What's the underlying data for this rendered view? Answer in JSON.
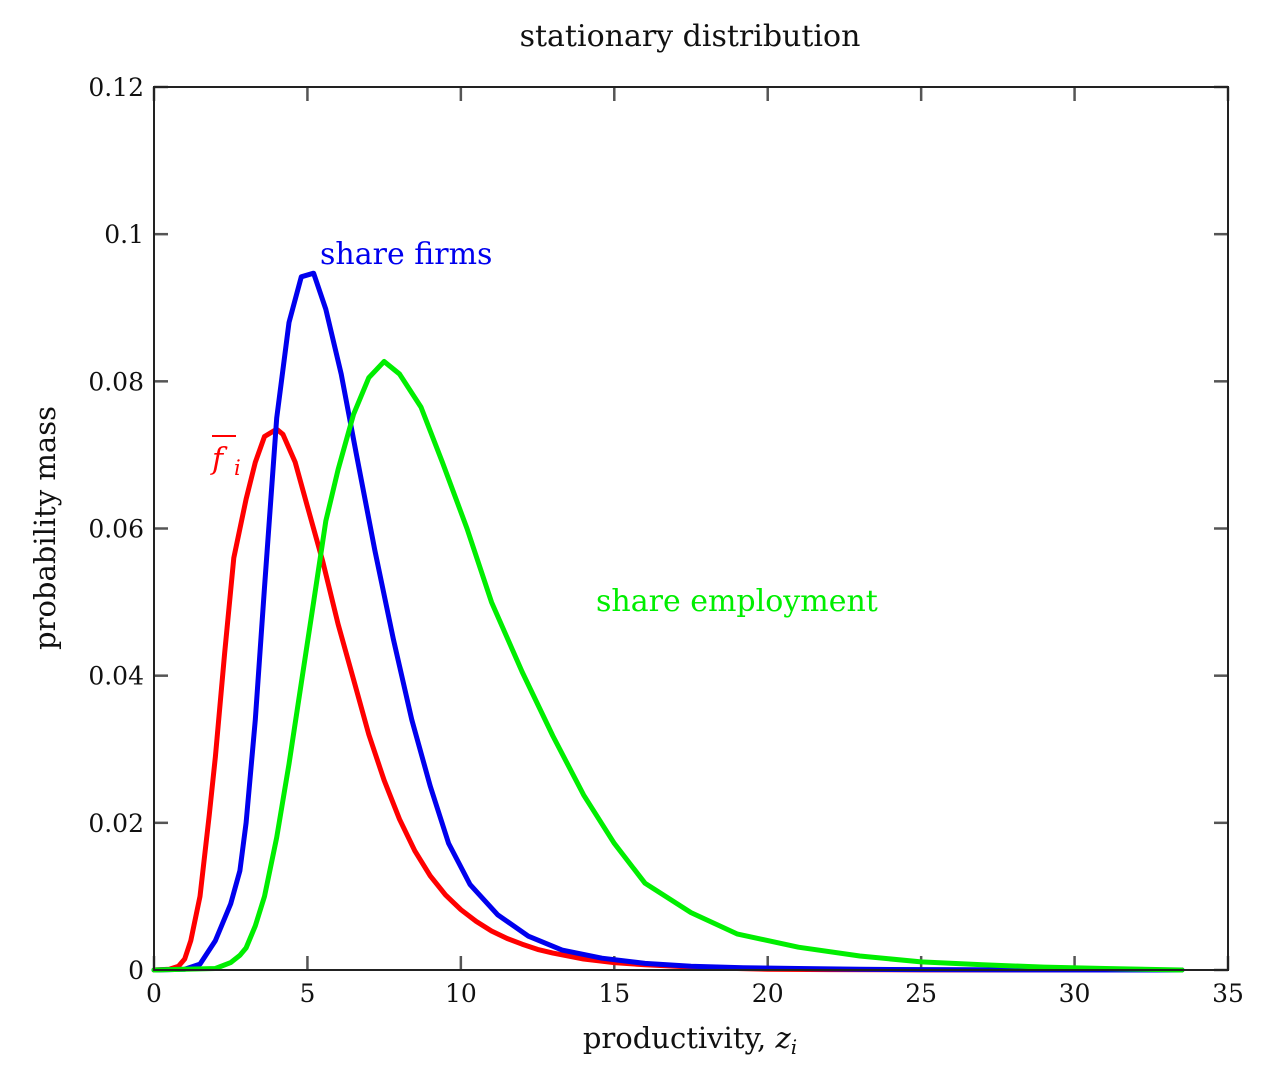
{
  "chart_data": {
    "type": "line",
    "title": "stationary distribution",
    "xlabel": "productivity, ",
    "xlabel_var": "z",
    "xlabel_sub": "i",
    "ylabel": "probability mass",
    "xlim": [
      0,
      35
    ],
    "ylim": [
      0,
      0.12
    ],
    "xticks": [
      0,
      5,
      10,
      15,
      20,
      25,
      30,
      35
    ],
    "xtick_labels": [
      "0",
      "5",
      "10",
      "15",
      "20",
      "25",
      "30",
      "35"
    ],
    "yticks": [
      0,
      0.02,
      0.04,
      0.06,
      0.08,
      0.1,
      0.12
    ],
    "ytick_labels": [
      "0",
      "0.02",
      "0.04",
      "0.06",
      "0.08",
      "0.1",
      "0.12"
    ],
    "grid": false,
    "legend": "none",
    "series": [
      {
        "name": "f",
        "label_sub": "i",
        "color": "#ff0000",
        "x": [
          0,
          0.5,
          0.8,
          1.0,
          1.2,
          1.5,
          1.8,
          2.0,
          2.3,
          2.6,
          3.0,
          3.3,
          3.6,
          4.0,
          4.2,
          4.6,
          5.0,
          5.5,
          6.0,
          6.5,
          7.0,
          7.5,
          8.0,
          8.5,
          9.0,
          9.5,
          10.0,
          10.5,
          11.0,
          11.5,
          12.0,
          12.5,
          13.0,
          13.5,
          14.0,
          15.0,
          16.0,
          17.0,
          18.0,
          19.0,
          20.0,
          22.0,
          25.0,
          30.0,
          33.5
        ],
        "y": [
          0,
          0.0001,
          0.0005,
          0.0015,
          0.004,
          0.01,
          0.021,
          0.029,
          0.043,
          0.056,
          0.064,
          0.069,
          0.0725,
          0.0735,
          0.0728,
          0.069,
          0.063,
          0.0555,
          0.047,
          0.0395,
          0.032,
          0.0258,
          0.0205,
          0.0162,
          0.0128,
          0.0102,
          0.0082,
          0.0066,
          0.0053,
          0.0043,
          0.0035,
          0.0028,
          0.0023,
          0.0019,
          0.0015,
          0.001,
          0.0007,
          0.0005,
          0.0003,
          0.0002,
          0.0001,
          5e-05,
          1e-05,
          0,
          0
        ]
      },
      {
        "name": "share firms",
        "color": "#0000ee",
        "x": [
          0,
          1.0,
          1.5,
          2.0,
          2.5,
          2.8,
          3.0,
          3.3,
          3.6,
          4.0,
          4.4,
          4.8,
          5.2,
          5.6,
          6.1,
          6.6,
          7.2,
          7.8,
          8.4,
          9.0,
          9.6,
          10.3,
          11.2,
          12.2,
          13.3,
          14.6,
          16.0,
          17.5,
          19.2,
          21.0,
          23.0,
          25.0,
          28.0,
          33.5
        ],
        "y": [
          0,
          0.0001,
          0.0008,
          0.004,
          0.009,
          0.0135,
          0.02,
          0.034,
          0.052,
          0.075,
          0.088,
          0.0942,
          0.0947,
          0.0898,
          0.081,
          0.07,
          0.057,
          0.045,
          0.034,
          0.025,
          0.0172,
          0.0116,
          0.0075,
          0.0046,
          0.0027,
          0.0016,
          0.0009,
          0.0005,
          0.0003,
          0.0002,
          0.0001,
          5e-05,
          1e-05,
          0
        ]
      },
      {
        "name": "share employment",
        "color": "#00ee00",
        "x": [
          0,
          2.0,
          2.5,
          2.8,
          3.0,
          3.3,
          3.6,
          4.0,
          4.4,
          4.8,
          5.2,
          5.6,
          6.0,
          6.5,
          7.0,
          7.5,
          8.0,
          8.7,
          9.4,
          10.2,
          11.0,
          12.0,
          13.0,
          14.0,
          15.0,
          16.0,
          17.5,
          19.0,
          21.0,
          23.0,
          25.0,
          27.0,
          29.0,
          31.0,
          33.5
        ],
        "y": [
          0,
          0.0002,
          0.001,
          0.002,
          0.003,
          0.006,
          0.01,
          0.018,
          0.028,
          0.039,
          0.05,
          0.061,
          0.068,
          0.0755,
          0.0805,
          0.0827,
          0.081,
          0.0765,
          0.069,
          0.06,
          0.05,
          0.0405,
          0.0318,
          0.0238,
          0.0172,
          0.0118,
          0.0078,
          0.0049,
          0.0031,
          0.0019,
          0.0011,
          0.0007,
          0.0004,
          0.0002,
          0
        ]
      }
    ]
  }
}
